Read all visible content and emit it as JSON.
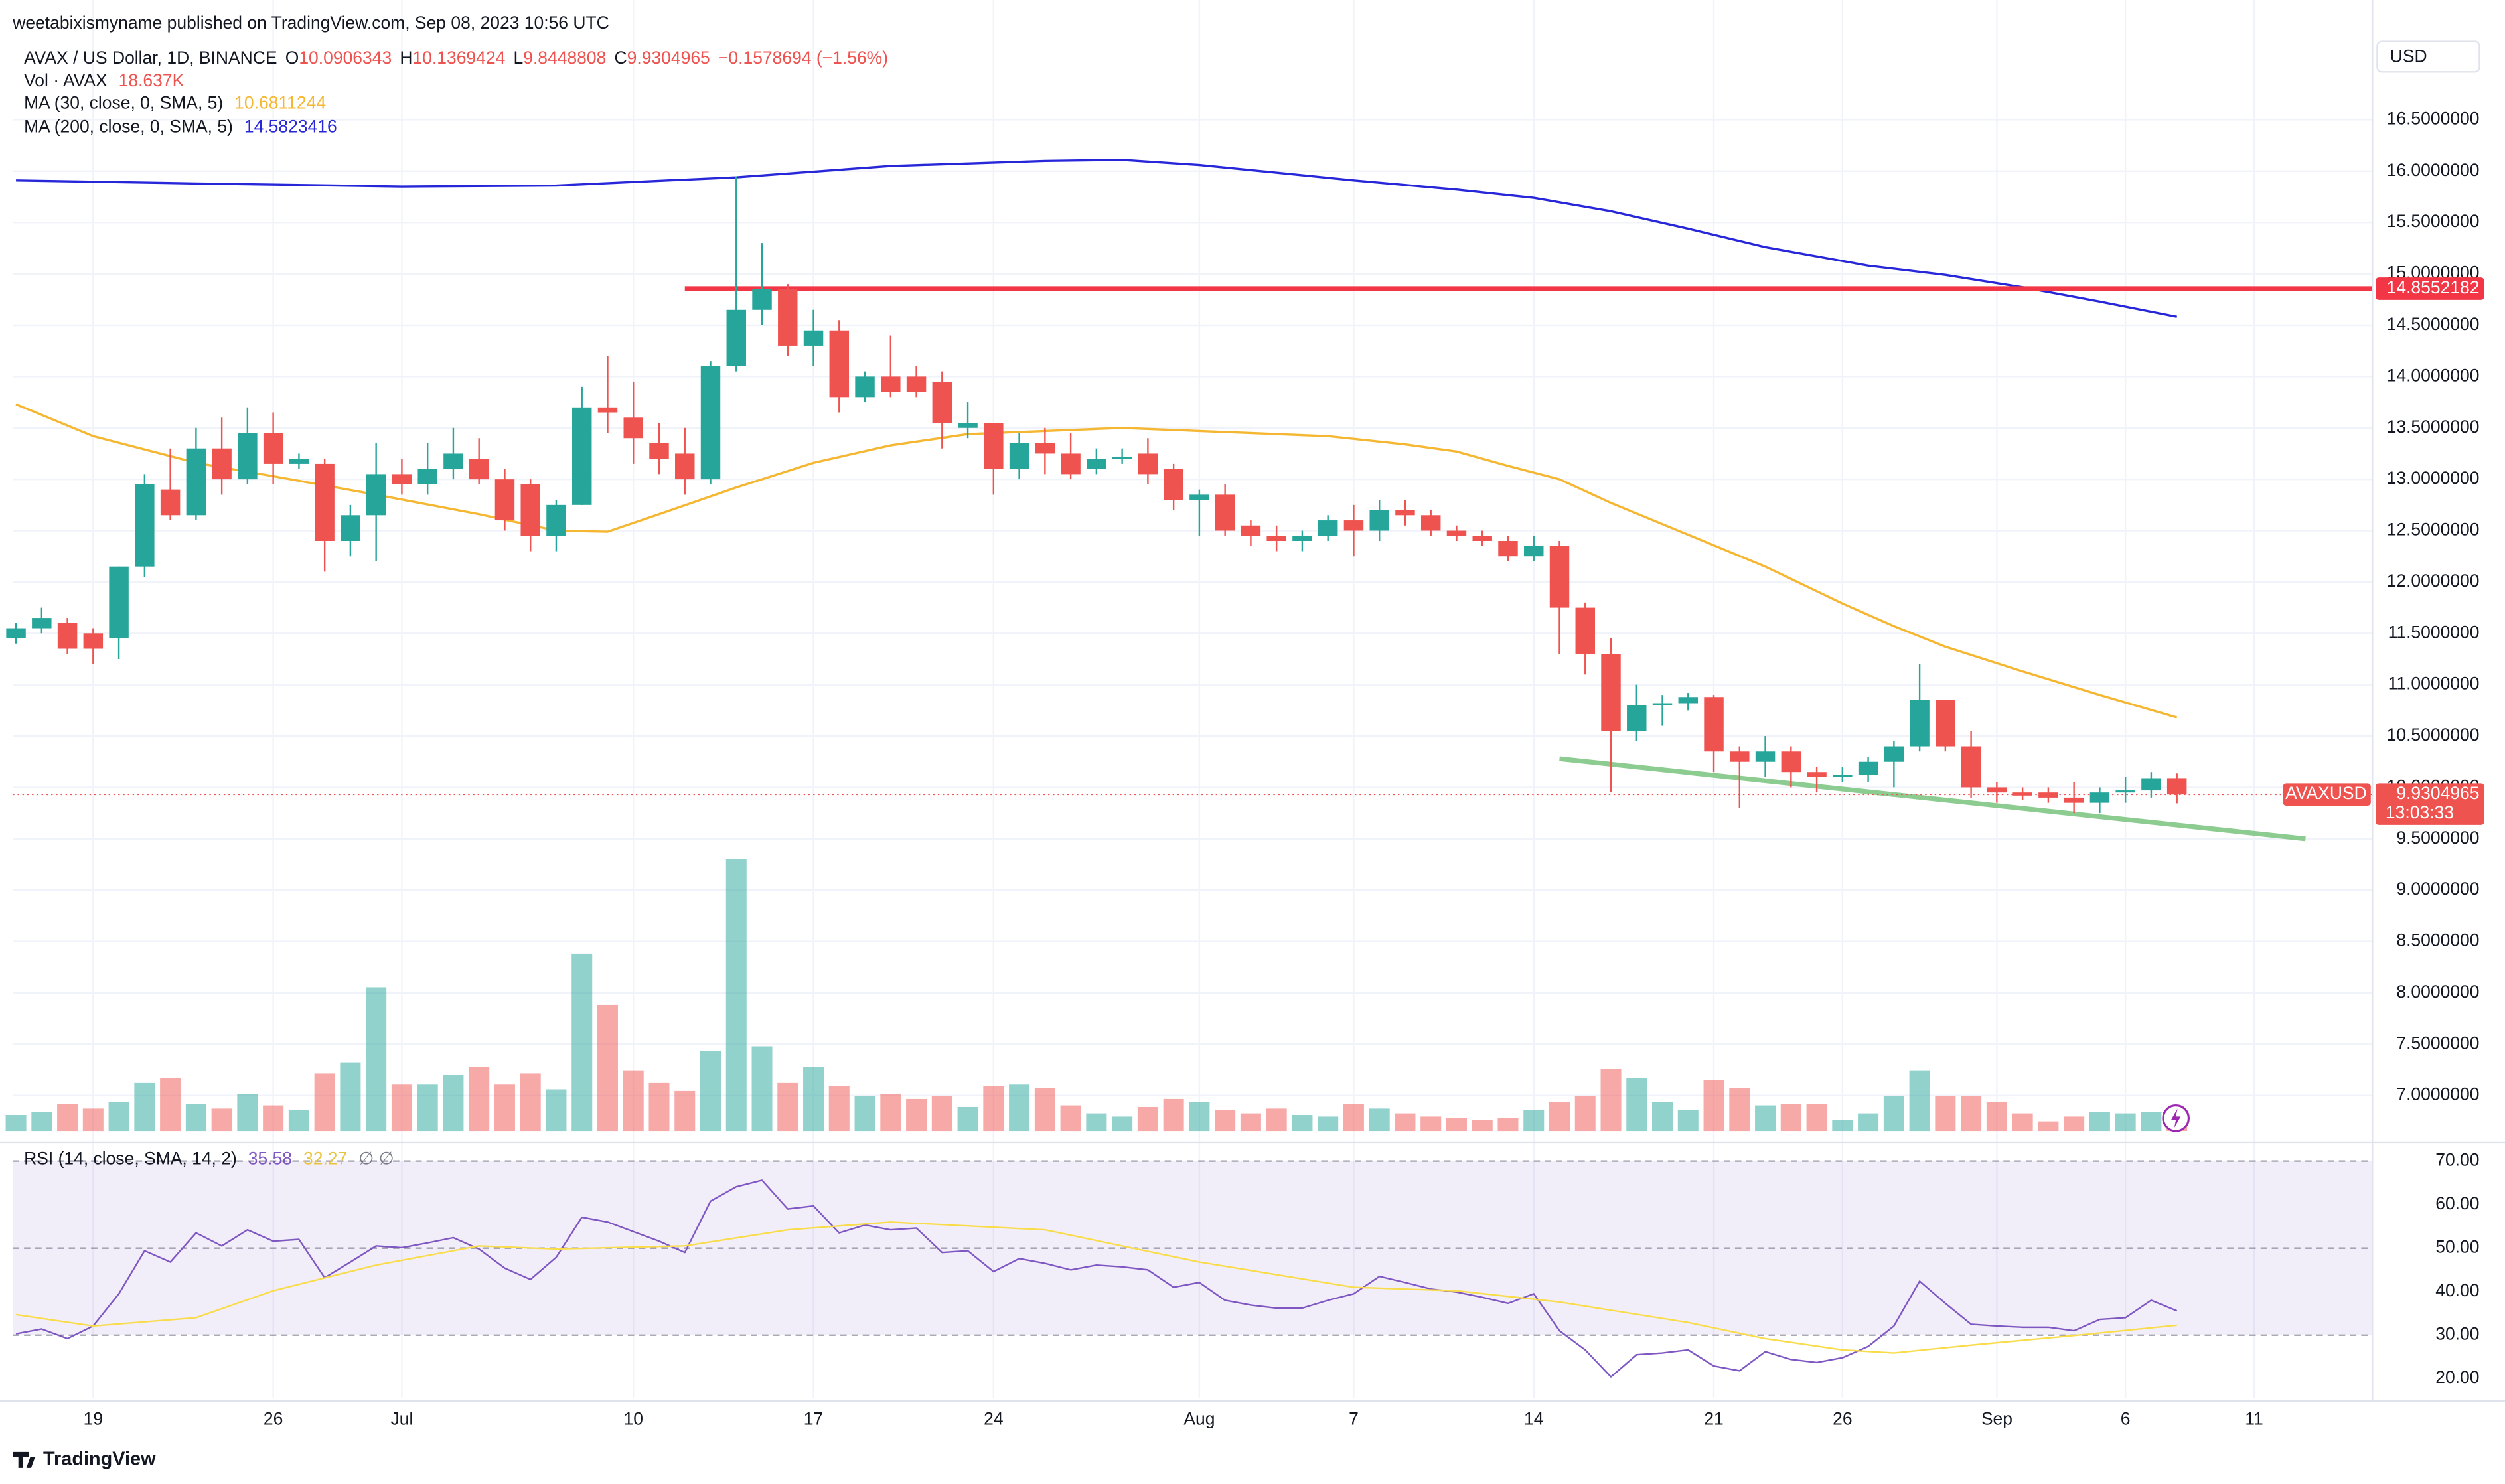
{
  "chart_data": {
    "type": "candlestick",
    "attribution": "weetabixismyname published on TradingView.com, Sep 08, 2023 10:56 UTC",
    "title": "AVAX / US Dollar, 1D, BINANCE",
    "ohlc_keys": [
      "O",
      "H",
      "L",
      "C"
    ],
    "change": "−0.1578694 (−1.56%)",
    "currency": "USD",
    "brand": "TradingView",
    "up_color": "#26a69a",
    "down_color": "#ef5350",
    "grid": true,
    "xlim": [
      -0.124,
      91.6
    ],
    "xticks": [
      {
        "value": 3,
        "label": "19"
      },
      {
        "value": 10,
        "label": "26"
      },
      {
        "value": 15,
        "label": "Jul"
      },
      {
        "value": 24,
        "label": "10"
      },
      {
        "value": 31,
        "label": "17"
      },
      {
        "value": 38,
        "label": "24"
      },
      {
        "value": 46,
        "label": "Aug"
      },
      {
        "value": 52,
        "label": "7"
      },
      {
        "value": 59,
        "label": "14"
      },
      {
        "value": 66,
        "label": "21"
      },
      {
        "value": 71,
        "label": "26"
      },
      {
        "value": 77,
        "label": "Sep"
      },
      {
        "value": 82,
        "label": "6"
      },
      {
        "value": 87,
        "label": "11"
      }
    ],
    "ylim": [
      6.593,
      17.044
    ],
    "yticks": [
      {
        "value": 7.0,
        "label": "7.0000000"
      },
      {
        "value": 7.5,
        "label": "7.5000000"
      },
      {
        "value": 8.0,
        "label": "8.0000000"
      },
      {
        "value": 8.5,
        "label": "8.5000000"
      },
      {
        "value": 9.0,
        "label": "9.0000000"
      },
      {
        "value": 9.5,
        "label": "9.5000000"
      },
      {
        "value": 10.0,
        "label": "10.0000000"
      },
      {
        "value": 10.5,
        "label": "10.5000000"
      },
      {
        "value": 11.0,
        "label": "11.0000000"
      },
      {
        "value": 11.5,
        "label": "11.5000000"
      },
      {
        "value": 12.0,
        "label": "12.0000000"
      },
      {
        "value": 12.5,
        "label": "12.5000000"
      },
      {
        "value": 13.0,
        "label": "13.0000000"
      },
      {
        "value": 13.5,
        "label": "13.5000000"
      },
      {
        "value": 14.0,
        "label": "14.0000000"
      },
      {
        "value": 14.5,
        "label": "14.5000000"
      },
      {
        "value": 15.0,
        "label": "15.0000000"
      },
      {
        "value": 15.5,
        "label": "15.5000000"
      },
      {
        "value": 16.0,
        "label": "16.0000000"
      },
      {
        "value": 16.5,
        "label": "16.5000000"
      }
    ],
    "open": [
      11.45,
      11.55,
      11.6,
      11.5,
      11.45,
      12.15,
      12.9,
      12.65,
      13.3,
      13.0,
      13.45,
      13.15,
      13.15,
      12.4,
      12.65,
      13.05,
      12.95,
      13.1,
      13.2,
      13.0,
      12.95,
      12.45,
      12.75,
      13.7,
      13.6,
      13.35,
      13.25,
      13.0,
      14.1,
      14.65,
      14.85,
      14.3,
      14.45,
      13.8,
      14.0,
      14.0,
      13.95,
      13.5,
      13.55,
      13.1,
      13.35,
      13.25,
      13.1,
      13.2,
      13.25,
      13.1,
      12.8,
      12.85,
      12.55,
      12.45,
      12.4,
      12.45,
      12.6,
      12.5,
      12.7,
      12.65,
      12.5,
      12.45,
      12.4,
      12.25,
      12.35,
      11.75,
      11.3,
      10.55,
      10.8,
      10.82,
      10.88,
      10.35,
      10.25,
      10.35,
      10.15,
      10.1,
      10.12,
      10.25,
      10.4,
      10.85,
      10.4,
      10.0,
      9.95,
      9.95,
      9.9,
      9.85,
      9.95,
      9.97,
      10.0906343
    ],
    "high": [
      11.6,
      11.75,
      11.65,
      11.55,
      12.15,
      13.05,
      13.3,
      13.5,
      13.6,
      13.7,
      13.65,
      13.25,
      13.2,
      12.75,
      13.35,
      13.2,
      13.35,
      13.5,
      13.4,
      13.1,
      13.0,
      12.8,
      13.9,
      14.2,
      13.95,
      13.55,
      13.5,
      14.15,
      15.95,
      15.3,
      14.9,
      14.65,
      14.55,
      14.05,
      14.4,
      14.1,
      14.05,
      13.75,
      13.55,
      13.45,
      13.5,
      13.45,
      13.3,
      13.3,
      13.4,
      13.15,
      12.9,
      12.95,
      12.6,
      12.55,
      12.5,
      12.65,
      12.75,
      12.8,
      12.8,
      12.7,
      12.55,
      12.5,
      12.45,
      12.45,
      12.4,
      11.8,
      11.45,
      11.0,
      10.9,
      10.92,
      10.9,
      10.4,
      10.5,
      10.4,
      10.2,
      10.2,
      10.3,
      10.45,
      11.2,
      10.85,
      10.55,
      10.05,
      10.0,
      10.0,
      10.05,
      10.0,
      10.1,
      10.15,
      10.1369424
    ],
    "low": [
      11.4,
      11.5,
      11.3,
      11.2,
      11.25,
      12.05,
      12.6,
      12.6,
      12.85,
      12.95,
      12.95,
      13.1,
      12.1,
      12.25,
      12.2,
      12.85,
      12.85,
      13.0,
      12.95,
      12.5,
      12.3,
      12.3,
      12.75,
      13.45,
      13.15,
      13.05,
      12.85,
      12.95,
      14.05,
      14.5,
      14.2,
      14.1,
      13.65,
      13.75,
      13.8,
      13.8,
      13.3,
      13.4,
      12.85,
      13.0,
      13.05,
      13.0,
      13.05,
      13.15,
      12.95,
      12.7,
      12.45,
      12.45,
      12.35,
      12.3,
      12.3,
      12.4,
      12.25,
      12.4,
      12.55,
      12.45,
      12.4,
      12.35,
      12.2,
      12.2,
      11.3,
      11.1,
      9.95,
      10.45,
      10.6,
      10.75,
      10.15,
      9.8,
      10.1,
      10.0,
      9.95,
      10.05,
      10.05,
      10.0,
      10.35,
      10.35,
      9.9,
      9.85,
      9.88,
      9.85,
      9.75,
      9.75,
      9.85,
      9.9,
      9.8448808
    ],
    "close": [
      11.55,
      11.65,
      11.35,
      11.35,
      12.15,
      12.95,
      12.65,
      13.3,
      13.0,
      13.45,
      13.15,
      13.2,
      12.4,
      12.65,
      13.05,
      12.95,
      13.1,
      13.25,
      13.0,
      12.6,
      12.45,
      12.75,
      13.7,
      13.65,
      13.4,
      13.2,
      13.0,
      14.1,
      14.65,
      14.85,
      14.3,
      14.45,
      13.8,
      14.0,
      13.85,
      13.85,
      13.55,
      13.55,
      13.1,
      13.35,
      13.25,
      13.05,
      13.2,
      13.22,
      13.05,
      12.8,
      12.85,
      12.5,
      12.45,
      12.4,
      12.45,
      12.6,
      12.5,
      12.7,
      12.65,
      12.5,
      12.45,
      12.4,
      12.25,
      12.35,
      11.75,
      11.3,
      10.55,
      10.8,
      10.82,
      10.88,
      10.35,
      10.25,
      10.35,
      10.15,
      10.1,
      10.12,
      10.25,
      10.4,
      10.85,
      10.4,
      10.0,
      9.95,
      9.92,
      9.9,
      9.85,
      9.95,
      9.97,
      10.09,
      9.9304965
    ],
    "volume": {
      "name": "Vol · AVAX",
      "last_label": "18.637K",
      "values": [
        17,
        20.4,
        28.9,
        23.8,
        30.6,
        51,
        56.1,
        28.9,
        23.8,
        39.1,
        27.2,
        22.1,
        61.2,
        73.1,
        153,
        49.3,
        49.3,
        59.5,
        68,
        49.3,
        61.2,
        44.2,
        188.7,
        134.3,
        64.6,
        51,
        42.5,
        85,
        289,
        90.1,
        51,
        68,
        47.6,
        37.4,
        39.1,
        34,
        37.4,
        25.5,
        47.6,
        49.3,
        45.9,
        27.2,
        18.7,
        15.3,
        25.5,
        34,
        30.6,
        22.1,
        18.7,
        23.8,
        17,
        15.3,
        28.9,
        23.8,
        18.7,
        15.3,
        13.6,
        11.9,
        13.6,
        22.1,
        30.6,
        37.4,
        66.3,
        56.1,
        30.6,
        22.1,
        54.4,
        45.9,
        27.2,
        28.9,
        28.9,
        11.9,
        18.7,
        37.4,
        64.6,
        37.4,
        37.4,
        30.6,
        18.7,
        10.2,
        15.3,
        20.4,
        18.7,
        20.4,
        18.637
      ]
    },
    "overlays": [
      {
        "name": "MA (30, close, 0, SMA, 5)",
        "color": "#f5b731",
        "x": [
          0,
          3,
          7,
          10,
          14,
          18,
          21,
          23,
          25,
          28,
          31,
          34,
          37,
          40,
          43,
          46,
          49,
          51,
          54,
          56,
          58,
          60,
          62,
          65,
          68,
          71,
          73,
          75,
          78,
          81,
          84
        ],
        "values": [
          13.73,
          13.42,
          13.16,
          13.03,
          12.85,
          12.66,
          12.5,
          12.49,
          12.66,
          12.92,
          13.16,
          13.33,
          13.44,
          13.47,
          13.5,
          13.47,
          13.44,
          13.42,
          13.34,
          13.27,
          13.13,
          13.0,
          12.77,
          12.46,
          12.15,
          11.79,
          11.57,
          11.37,
          11.13,
          10.9,
          10.6811244
        ]
      },
      {
        "name": "MA (200, close, 0, SMA, 5)",
        "color": "#2727d9",
        "x": [
          0,
          7,
          15,
          21,
          28,
          34,
          40,
          43,
          46,
          52,
          56,
          59,
          62,
          65,
          68,
          72,
          75,
          78,
          81,
          84
        ],
        "values": [
          15.91,
          15.88,
          15.85,
          15.86,
          15.94,
          16.05,
          16.1,
          16.11,
          16.06,
          15.91,
          15.82,
          15.74,
          15.61,
          15.44,
          15.26,
          15.08,
          14.99,
          14.87,
          14.73,
          14.5823416
        ]
      }
    ],
    "hline": {
      "value": 14.8552182,
      "start_x": 26,
      "color": "#f23645"
    },
    "trendline": {
      "x": [
        60,
        89
      ],
      "values": [
        10.28,
        9.5
      ],
      "color": "#81c784"
    },
    "last_price": {
      "name": "AVAXUSD",
      "value": 9.9304965,
      "countdown": "13:03:33"
    },
    "rsi": {
      "name": "RSI (14, close, SMA, 14, 2)",
      "color": "#7e57c2",
      "extra": "∅ ∅",
      "ylim": [
        15.6,
        74.0
      ],
      "yticks": [
        {
          "value": 20,
          "label": "20.00"
        },
        {
          "value": 30,
          "label": "30.00"
        },
        {
          "value": 40,
          "label": "40.00"
        },
        {
          "value": 50,
          "label": "50.00"
        },
        {
          "value": 60,
          "label": "60.00"
        },
        {
          "value": 70,
          "label": "70.00"
        }
      ],
      "levels": [
        70,
        50,
        30
      ],
      "values": [
        30.3,
        31.4,
        29.2,
        32.1,
        39.5,
        49.4,
        46.8,
        53.5,
        50.5,
        54.2,
        51.6,
        52.0,
        43.2,
        46.8,
        50.5,
        50.1,
        51.2,
        52.4,
        49.8,
        45.4,
        42.8,
        47.9,
        57.1,
        56.0,
        53.8,
        51.6,
        49.0,
        60.8,
        64.1,
        65.6,
        59.0,
        59.7,
        53.5,
        55.3,
        54.2,
        54.6,
        49.0,
        49.4,
        44.6,
        47.6,
        46.5,
        45.0,
        46.1,
        45.7,
        45.0,
        41.0,
        42.1,
        38.0,
        36.9,
        36.2,
        36.2,
        38.0,
        39.5,
        43.5,
        42.1,
        40.6,
        39.9,
        38.7,
        37.3,
        39.5,
        31.0,
        26.6,
        20.4,
        25.5,
        25.9,
        26.6,
        22.9,
        21.8,
        26.2,
        24.4,
        23.7,
        24.8,
        27.4,
        32.1,
        42.4,
        37.3,
        32.5,
        32.1,
        31.8,
        31.8,
        31.0,
        33.6,
        34.0,
        38.0,
        35.58
      ],
      "ma": {
        "color": "#f9dc4a",
        "x": [
          0,
          3,
          7,
          10,
          14,
          18,
          21,
          26,
          30,
          34,
          40,
          46,
          52,
          56,
          60,
          65,
          68,
          71,
          73,
          76,
          80,
          84
        ],
        "values": [
          34.7,
          32.1,
          34.0,
          40.2,
          46.1,
          50.5,
          49.8,
          50.5,
          54.2,
          56.0,
          54.2,
          46.8,
          41.0,
          40.2,
          37.6,
          32.9,
          29.2,
          26.6,
          25.9,
          27.7,
          29.9,
          32.27
        ]
      }
    }
  }
}
